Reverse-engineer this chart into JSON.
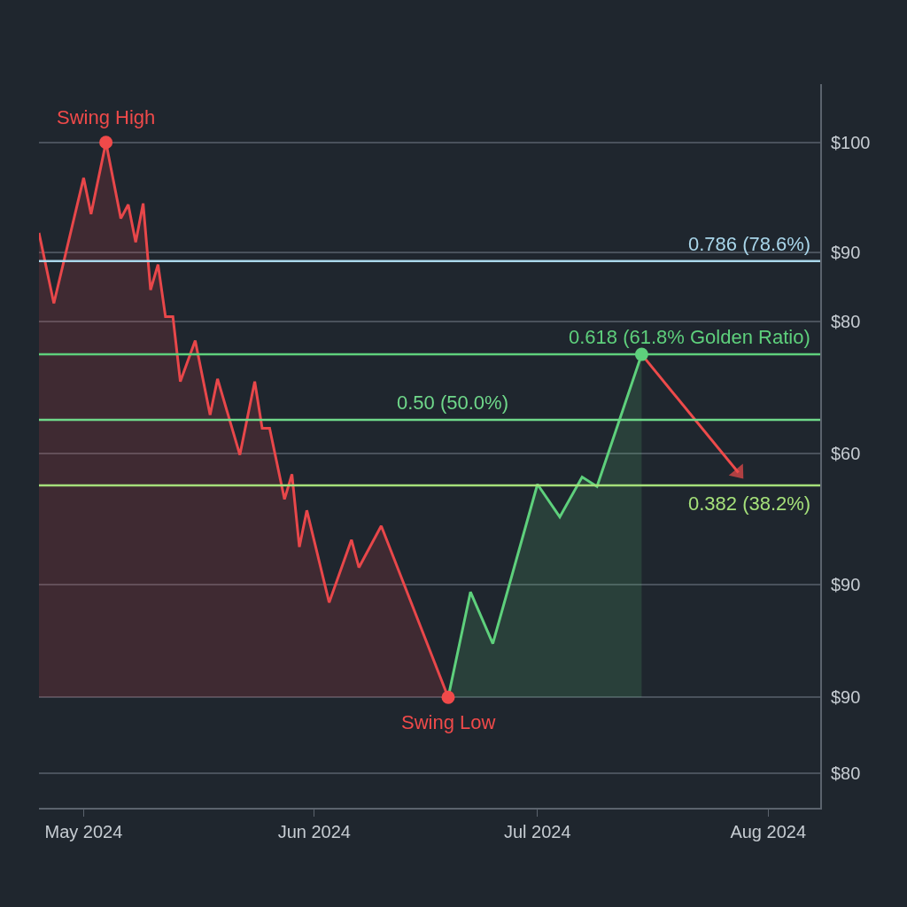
{
  "chart_data": {
    "type": "area",
    "xlim": [
      "2024-04-25",
      "2024-08-08"
    ],
    "xticks": [
      {
        "value": "2024-05-01",
        "label": "May 2024"
      },
      {
        "value": "2024-06-01",
        "label": "Jun 2024"
      },
      {
        "value": "2024-07-01",
        "label": "Jul 2024"
      },
      {
        "value": "2024-08-01",
        "label": "Aug 2024"
      }
    ],
    "ylim": [
      -19.9,
      110.5
    ],
    "yticks": [
      {
        "value": 100,
        "label": null
      },
      {
        "value": 80.1,
        "label": null
      },
      {
        "value": 67.7,
        "label": null
      },
      {
        "value": 44.0,
        "label": null
      },
      {
        "value": 20.3,
        "label": null
      },
      {
        "value": 0,
        "label": null
      },
      {
        "value": -13.6,
        "label": null
      }
    ],
    "grid": "y",
    "line_style": "solid",
    "series": [
      {
        "color": "#e8474a",
        "x": [
          "2024-04-25",
          "2024-04-27",
          "2024-05-01",
          "2024-05-02",
          "2024-05-04",
          "2024-05-06",
          "2024-05-07",
          "2024-05-08",
          "2024-05-09",
          "2024-05-10",
          "2024-05-11",
          "2024-05-12",
          "2024-05-13",
          "2024-05-14",
          "2024-05-16",
          "2024-05-18",
          "2024-05-19",
          "2024-05-22",
          "2024-05-24",
          "2024-05-25",
          "2024-05-26",
          "2024-05-28",
          "2024-05-29",
          "2024-05-30",
          "2024-05-31",
          "2024-06-03",
          "2024-06-06",
          "2024-06-07",
          "2024-06-10",
          "2024-06-19"
        ],
        "values": [
          83.7,
          71.0,
          93.6,
          87.1,
          100,
          86.3,
          88.8,
          82.0,
          89.0,
          73.4,
          78.0,
          68.6,
          68.6,
          56.9,
          64.3,
          50.9,
          57.4,
          43.7,
          56.9,
          48.5,
          48.5,
          35.7,
          40.2,
          27.1,
          33.7,
          17.1,
          28.4,
          23.4,
          30.9,
          0
        ]
      },
      {
        "color": "#5ed07c",
        "x": [
          "2024-06-19",
          "2024-06-22",
          "2024-06-25",
          "2024-07-01",
          "2024-07-04",
          "2024-07-07",
          "2024-07-09",
          "2024-07-15"
        ],
        "values": [
          0,
          19.0,
          9.7,
          38.4,
          32.5,
          39.7,
          38.0,
          61.8
        ]
      },
      {
        "type": "line",
        "color": "#ee4b4b",
        "x": [
          "2024-07-15",
          "2024-07-28"
        ],
        "values": [
          61.8,
          40.5
        ]
      },
      {
        "type": "scatter",
        "marker": "circle",
        "x": [
          "2024-05-04",
          "2024-06-19",
          "2024-07-15"
        ],
        "values": [
          100,
          0,
          61.8
        ],
        "colors": [
          "#f04a4a",
          "#f04a4a",
          "#5ed07c"
        ]
      }
    ],
    "ref_lines": [
      {
        "axis": "y",
        "value": 78.6,
        "label": "0.786 (78.6%)",
        "color": "#a9d6ea"
      },
      {
        "axis": "y",
        "value": 61.8,
        "label": "0.618 (61.8% Golden Ratio)",
        "color": "#5ed07c"
      },
      {
        "axis": "y",
        "value": 50.0,
        "label": "0.50 (50.0%)",
        "color": "#6fd88a"
      },
      {
        "axis": "y",
        "value": 38.2,
        "label": "0.382 (38.2%)",
        "color": "#a5e07a"
      }
    ],
    "annotations": [
      {
        "text": "Swing High",
        "x": "2024-05-04",
        "y": 100
      },
      {
        "text": "Swing Low",
        "x": "2024-06-19",
        "y": 0
      },
      "$100",
      "$90",
      "$80",
      "$60",
      "$90",
      "$90",
      "$80"
    ]
  }
}
